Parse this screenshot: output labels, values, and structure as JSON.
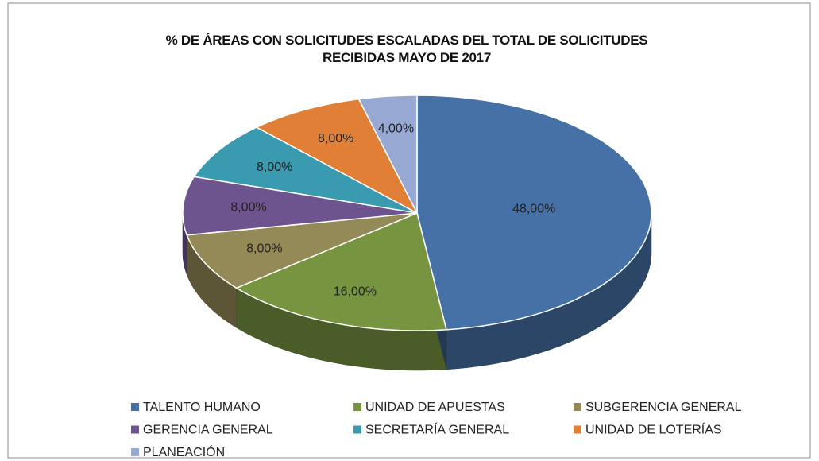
{
  "chart_data": {
    "type": "pie",
    "title": "% DE ÁREAS CON SOLICITUDES ESCALADAS DEL TOTAL DE SOLICITUDES RECIBIDAS MAYO DE 2017",
    "categories": [
      "TALENTO HUMANO",
      "UNIDAD DE APUESTAS",
      "SUBGERENCIA GENERAL",
      "GERENCIA GENERAL",
      "SECRETARÍA GENERAL",
      "UNIDAD DE LOTERÍAS",
      "PLANEACIÓN"
    ],
    "values": [
      48,
      16,
      8,
      8,
      8,
      8,
      4
    ],
    "value_labels": [
      "48,00%",
      "16,00%",
      "8,00%",
      "8,00%",
      "8,00%",
      "8,00%",
      "4,00%"
    ],
    "colors": [
      "#4671a6",
      "#779540",
      "#948a58",
      "#6e548f",
      "#3a9ab0",
      "#e07f35",
      "#97a9d3"
    ],
    "legend": "bottom"
  }
}
